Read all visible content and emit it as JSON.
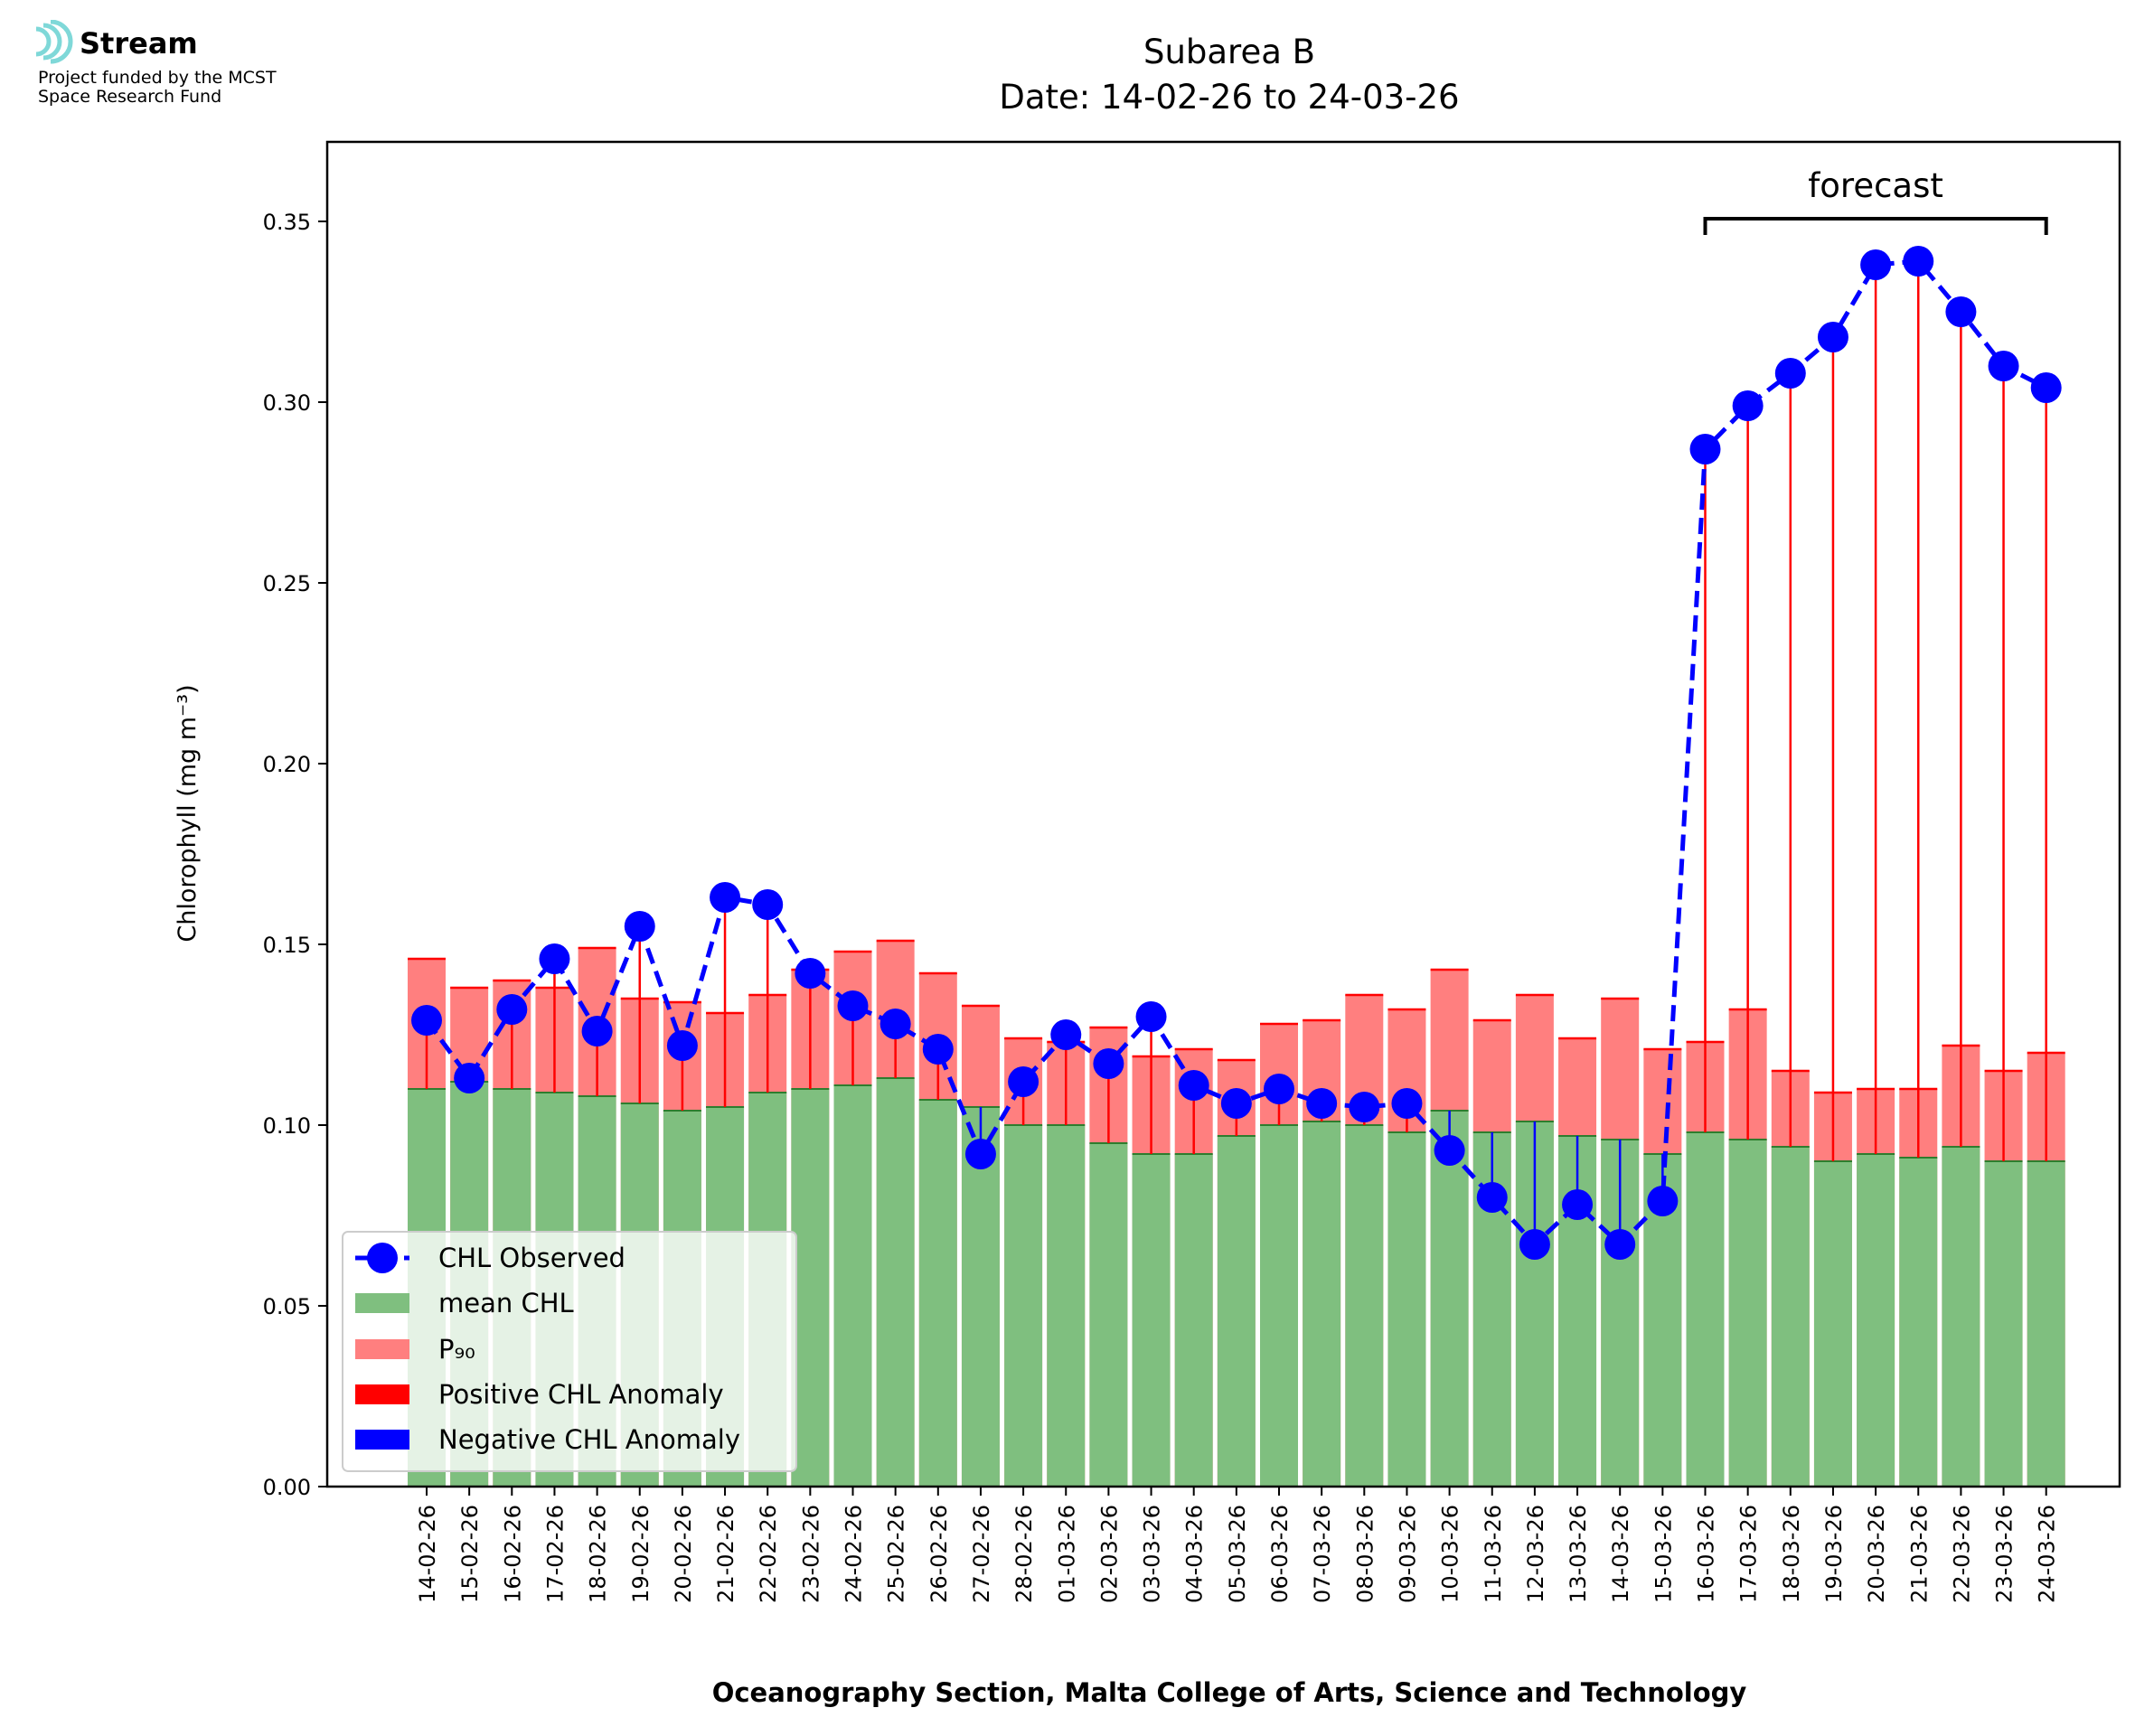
{
  "logo": {
    "name": "Stream",
    "line1": "Project funded by the MCST",
    "line2": "Space Research Fund",
    "color": "#7fd8d8"
  },
  "chart_data": {
    "type": "bar",
    "title": "Subarea B",
    "subtitle": "Date: 14-02-26 to 24-03-26",
    "xlabel": "Oceanography Section, Malta College of Arts, Science and Technology",
    "ylabel": "Chlorophyll (mg m⁻³)",
    "ylim": [
      0,
      0.372
    ],
    "yticks": [
      0.0,
      0.05,
      0.1,
      0.15,
      0.2,
      0.25,
      0.3,
      0.35
    ],
    "ytick_labels": [
      "0.00",
      "0.05",
      "0.10",
      "0.15",
      "0.20",
      "0.25",
      "0.30",
      "0.35"
    ],
    "grid": false,
    "legend_position": "lower-left",
    "annotation": {
      "text": "forecast",
      "from": "16-03-26",
      "to": "24-03-26"
    },
    "categories": [
      "14-02-26",
      "15-02-26",
      "16-02-26",
      "17-02-26",
      "18-02-26",
      "19-02-26",
      "20-02-26",
      "21-02-26",
      "22-02-26",
      "23-02-26",
      "24-02-26",
      "25-02-26",
      "26-02-26",
      "27-02-26",
      "28-02-26",
      "01-03-26",
      "02-03-26",
      "03-03-26",
      "04-03-26",
      "05-03-26",
      "06-03-26",
      "07-03-26",
      "08-03-26",
      "09-03-26",
      "10-03-26",
      "11-03-26",
      "12-03-26",
      "13-03-26",
      "14-03-26",
      "15-03-26",
      "16-03-26",
      "17-03-26",
      "18-03-26",
      "19-03-26",
      "20-03-26",
      "21-03-26",
      "22-03-26",
      "23-03-26",
      "24-03-26"
    ],
    "series": [
      {
        "name": "CHL Observed",
        "kind": "line-marker",
        "color": "#0000ff",
        "values": [
          0.129,
          0.113,
          0.132,
          0.146,
          0.126,
          0.155,
          0.122,
          0.163,
          0.161,
          0.142,
          0.133,
          0.128,
          0.121,
          0.092,
          0.112,
          0.125,
          0.117,
          0.13,
          0.111,
          0.106,
          0.11,
          0.106,
          0.105,
          0.106,
          0.093,
          0.08,
          0.067,
          0.078,
          0.067,
          0.079,
          0.287,
          0.299,
          0.308,
          0.318,
          0.338,
          0.339,
          0.325,
          0.31,
          0.304
        ]
      },
      {
        "name": "mean CHL",
        "kind": "bar",
        "color": "#7fbf7f",
        "values": [
          0.11,
          0.112,
          0.11,
          0.109,
          0.108,
          0.106,
          0.104,
          0.105,
          0.109,
          0.11,
          0.111,
          0.113,
          0.107,
          0.105,
          0.1,
          0.1,
          0.095,
          0.092,
          0.092,
          0.097,
          0.1,
          0.101,
          0.1,
          0.098,
          0.104,
          0.098,
          0.101,
          0.097,
          0.096,
          0.092,
          0.098,
          0.096,
          0.094,
          0.09,
          0.092,
          0.091,
          0.094,
          0.09,
          0.09
        ]
      },
      {
        "name": "P₉₀",
        "kind": "bar",
        "color": "#ff7f7f",
        "values": [
          0.146,
          0.138,
          0.14,
          0.138,
          0.149,
          0.135,
          0.134,
          0.131,
          0.136,
          0.143,
          0.148,
          0.151,
          0.142,
          0.133,
          0.124,
          0.123,
          0.127,
          0.119,
          0.121,
          0.118,
          0.128,
          0.129,
          0.136,
          0.132,
          0.143,
          0.129,
          0.136,
          0.124,
          0.135,
          0.121,
          0.123,
          0.132,
          0.115,
          0.109,
          0.11,
          0.11,
          0.122,
          0.115,
          0.12
        ]
      },
      {
        "name": "Positive CHL Anomaly",
        "kind": "legend-only",
        "color": "#ff0000"
      },
      {
        "name": "Negative CHL Anomaly",
        "kind": "legend-only",
        "color": "#0000ff"
      }
    ]
  }
}
